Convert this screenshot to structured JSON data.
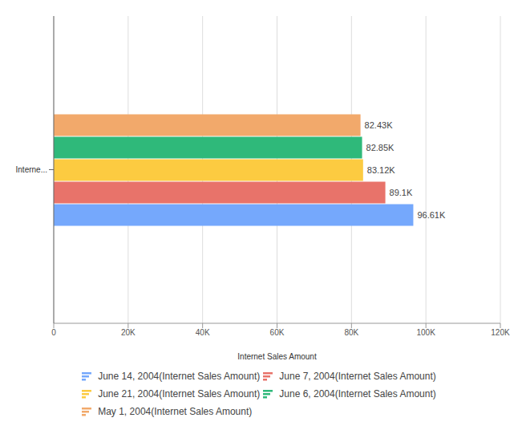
{
  "chart_data": {
    "type": "bar",
    "orientation": "horizontal",
    "x_label": "Internet Sales Amount",
    "categories": [
      "Interne..."
    ],
    "series": [
      {
        "name": "June 14, 2004(Internet Sales Amount)",
        "color": "#75a8fc",
        "values": [
          96610
        ],
        "value_labels": [
          "96.61K"
        ]
      },
      {
        "name": "June 7, 2004(Internet Sales Amount)",
        "color": "#e8736a",
        "values": [
          89100
        ],
        "value_labels": [
          "89.1K"
        ]
      },
      {
        "name": "June 21, 2004(Internet Sales Amount)",
        "color": "#fccb41",
        "values": [
          83120
        ],
        "value_labels": [
          "83.12K"
        ]
      },
      {
        "name": "June 6, 2004(Internet Sales Amount)",
        "color": "#2fb97a",
        "values": [
          82850
        ],
        "value_labels": [
          "82.85K"
        ]
      },
      {
        "name": "May 1, 2004(Internet Sales Amount)",
        "color": "#f2a96b",
        "values": [
          82430
        ],
        "value_labels": [
          "82.43K"
        ]
      }
    ],
    "xlim": [
      0,
      120000
    ],
    "xticks": [
      0,
      {
        "value": 20000,
        "label": "20K"
      },
      {
        "value": 40000,
        "label": "40K"
      },
      {
        "value": 60000,
        "label": "60K"
      },
      {
        "value": 80000,
        "label": "80K"
      },
      {
        "value": 100000,
        "label": "100K"
      },
      {
        "value": 120000,
        "label": "120K"
      }
    ],
    "grid": true,
    "data_labels": true,
    "legend": "bottom"
  }
}
